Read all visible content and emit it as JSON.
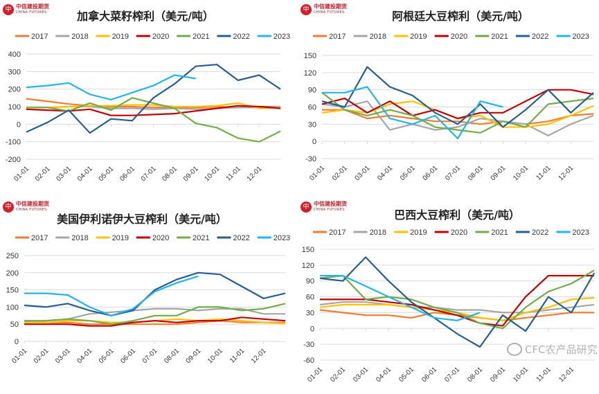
{
  "logo": {
    "cn": "中信建投期货",
    "en": "CHINA FUTURES"
  },
  "watermark": "CFC农产品研究",
  "colors": {
    "2017": "#ED7D31",
    "2018": "#A5A5A5",
    "2019": "#FFC000",
    "2020": "#C00000",
    "2021": "#70AD47",
    "2022": "#255E91",
    "2023": "#22B4EE"
  },
  "chart_data": [
    {
      "type": "line",
      "title": "加拿大菜籽榨利（美元/吨）",
      "x": [
        "01-01",
        "02-01",
        "03-01",
        "04-01",
        "05-01",
        "06-01",
        "07-01",
        "08-01",
        "09-01",
        "10-01",
        "11-01",
        "12-01",
        "12-31"
      ],
      "xticks": [
        "01-01",
        "02-01",
        "03-01",
        "04-01",
        "05-01",
        "06-01",
        "07-01",
        "08-01",
        "09-01",
        "10-01",
        "11-01",
        "12-01"
      ],
      "ylim": [
        -200,
        400
      ],
      "yticks": [
        400,
        300,
        200,
        100,
        0,
        -100,
        -200
      ],
      "grid": true,
      "legend": "top",
      "series": [
        {
          "name": "2017",
          "values": [
            145,
            130,
            115,
            105,
            100,
            100,
            95,
            95,
            95,
            100,
            95,
            100,
            100
          ]
        },
        {
          "name": "2018",
          "values": [
            95,
            95,
            100,
            100,
            90,
            90,
            85,
            90,
            85,
            90,
            95,
            95,
            100
          ]
        },
        {
          "name": "2019",
          "values": [
            95,
            95,
            100,
            105,
            105,
            110,
            110,
            100,
            100,
            105,
            120,
            90,
            95
          ]
        },
        {
          "name": "2020",
          "values": [
            85,
            80,
            75,
            85,
            50,
            50,
            55,
            60,
            75,
            90,
            105,
            100,
            90
          ]
        },
        {
          "name": "2021",
          "values": [
            95,
            95,
            75,
            120,
            80,
            150,
            120,
            90,
            5,
            -20,
            -80,
            -100,
            -40
          ]
        },
        {
          "name": "2022",
          "values": [
            -45,
            10,
            80,
            -50,
            30,
            20,
            150,
            230,
            330,
            340,
            250,
            280,
            200
          ]
        },
        {
          "name": "2023",
          "values": [
            210,
            220,
            235,
            170,
            140,
            180,
            220,
            280,
            260,
            null,
            null,
            null,
            null
          ]
        }
      ]
    },
    {
      "type": "line",
      "title": "阿根廷大豆榨利（美元/吨）",
      "x": [
        "01-01",
        "02-01",
        "03-01",
        "04-01",
        "05-01",
        "06-01",
        "07-01",
        "08-01",
        "09-01",
        "10-01",
        "11-01",
        "12-01",
        "12-31"
      ],
      "xticks": [
        "01-01",
        "02-01",
        "03-01",
        "04-01",
        "05-01",
        "06-01",
        "07-01",
        "08-01",
        "09-01",
        "10-01",
        "11-01",
        "12-01"
      ],
      "ylim": [
        -30,
        150
      ],
      "yticks": [
        150,
        120,
        90,
        60,
        30,
        0,
        -30
      ],
      "grid": true,
      "legend": "top",
      "series": [
        {
          "name": "2017",
          "values": [
            55,
            55,
            40,
            45,
            40,
            35,
            35,
            30,
            35,
            30,
            35,
            45,
            48
          ]
        },
        {
          "name": "2018",
          "values": [
            65,
            60,
            70,
            20,
            30,
            20,
            25,
            40,
            35,
            30,
            10,
            30,
            45
          ]
        },
        {
          "name": "2019",
          "values": [
            50,
            55,
            50,
            65,
            70,
            55,
            40,
            45,
            25,
            25,
            30,
            45,
            62
          ]
        },
        {
          "name": "2020",
          "values": [
            65,
            75,
            50,
            70,
            45,
            55,
            40,
            50,
            50,
            70,
            90,
            90,
            82
          ]
        },
        {
          "name": "2021",
          "values": [
            85,
            55,
            45,
            55,
            45,
            25,
            20,
            15,
            35,
            25,
            65,
            70,
            75
          ]
        },
        {
          "name": "2022",
          "values": [
            70,
            60,
            130,
            95,
            80,
            50,
            30,
            65,
            25,
            55,
            90,
            50,
            85
          ]
        },
        {
          "name": "2023",
          "values": [
            85,
            85,
            95,
            40,
            30,
            45,
            5,
            70,
            60,
            null,
            null,
            null,
            null
          ]
        }
      ]
    },
    {
      "type": "line",
      "title": "美国伊利诺伊大豆榨利（美元/吨）",
      "x": [
        "01-01",
        "02-01",
        "03-01",
        "04-01",
        "05-01",
        "06-01",
        "07-01",
        "08-01",
        "09-01",
        "10-01",
        "11-01",
        "12-01",
        "12-31"
      ],
      "xticks": [
        "01-01",
        "02-01",
        "03-01",
        "04-01",
        "05-01",
        "06-01",
        "07-01",
        "08-01",
        "09-01",
        "10-01",
        "11-01",
        "12-01"
      ],
      "ylim": [
        0,
        250
      ],
      "yticks": [
        250,
        200,
        150,
        100,
        50,
        0
      ],
      "grid": true,
      "legend": "top",
      "series": [
        {
          "name": "2017",
          "values": [
            60,
            55,
            55,
            50,
            50,
            50,
            50,
            50,
            55,
            60,
            55,
            55,
            55
          ]
        },
        {
          "name": "2018",
          "values": [
            55,
            60,
            65,
            80,
            85,
            90,
            95,
            95,
            90,
            95,
            95,
            80,
            80
          ]
        },
        {
          "name": "2019",
          "values": [
            55,
            55,
            60,
            60,
            55,
            55,
            60,
            65,
            60,
            65,
            60,
            55,
            52
          ]
        },
        {
          "name": "2020",
          "values": [
            50,
            50,
            50,
            45,
            45,
            55,
            60,
            55,
            60,
            60,
            70,
            65,
            60
          ]
        },
        {
          "name": "2021",
          "values": [
            60,
            60,
            65,
            60,
            50,
            60,
            75,
            75,
            100,
            100,
            90,
            95,
            110
          ]
        },
        {
          "name": "2022",
          "values": [
            105,
            100,
            110,
            90,
            75,
            90,
            150,
            180,
            200,
            195,
            160,
            125,
            140
          ]
        },
        {
          "name": "2023",
          "values": [
            140,
            140,
            135,
            100,
            75,
            95,
            145,
            170,
            190,
            null,
            null,
            null,
            null
          ]
        }
      ]
    },
    {
      "type": "line",
      "title": "巴西大豆榨利（美元/吨）",
      "x": [
        "01-01",
        "02-01",
        "03-01",
        "04-01",
        "05-01",
        "06-01",
        "07-01",
        "08-01",
        "09-01",
        "10-01",
        "11-01",
        "12-01",
        "12-31"
      ],
      "xticks": [
        "01-01",
        "02-01",
        "03-01",
        "04-01",
        "05-01",
        "06-01",
        "07-01",
        "08-01",
        "09-01",
        "10-01",
        "11-01",
        "12-01"
      ],
      "ylim": [
        -60,
        150
      ],
      "yticks": [
        150,
        120,
        90,
        60,
        30,
        0,
        -30,
        -60
      ],
      "grid": true,
      "legend": "top",
      "series": [
        {
          "name": "2017",
          "values": [
            35,
            30,
            25,
            25,
            20,
            30,
            25,
            20,
            15,
            20,
            25,
            30,
            30
          ]
        },
        {
          "name": "2018",
          "values": [
            45,
            50,
            50,
            45,
            40,
            40,
            35,
            35,
            30,
            30,
            35,
            40,
            45
          ]
        },
        {
          "name": "2019",
          "values": [
            40,
            45,
            45,
            45,
            40,
            35,
            30,
            20,
            15,
            30,
            40,
            55,
            58
          ]
        },
        {
          "name": "2020",
          "values": [
            55,
            55,
            55,
            50,
            45,
            35,
            25,
            10,
            5,
            60,
            100,
            100,
            100
          ]
        },
        {
          "name": "2021",
          "values": [
            95,
            100,
            55,
            60,
            55,
            40,
            30,
            10,
            0,
            40,
            70,
            85,
            110
          ]
        },
        {
          "name": "2022",
          "values": [
            95,
            90,
            135,
            90,
            50,
            20,
            -10,
            -35,
            25,
            -5,
            60,
            30,
            105
          ]
        },
        {
          "name": "2023",
          "values": [
            100,
            100,
            80,
            60,
            40,
            20,
            15,
            30,
            null,
            null,
            null,
            null,
            null
          ]
        }
      ]
    }
  ]
}
